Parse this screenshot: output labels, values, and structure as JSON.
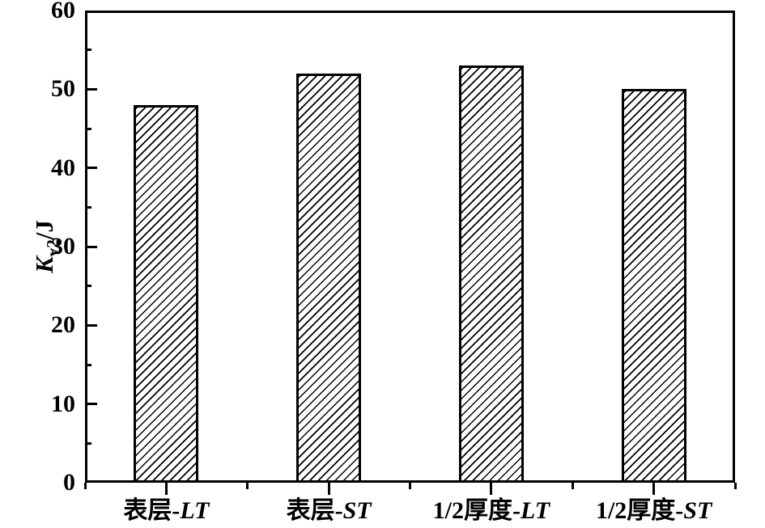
{
  "figure": {
    "background": "#ffffff",
    "axis_color": "#000000",
    "bar_fill": "#ffffff",
    "hatch_color": "#000000"
  },
  "chart_data": {
    "type": "bar",
    "title": "",
    "xlabel": "",
    "ylabel": "Kv2/J",
    "ylabel_parts": {
      "symbol": "K",
      "subscript": "v2",
      "unit": "/J"
    },
    "categories": [
      "表层-LT",
      "表层-ST",
      "1/2厚度-LT",
      "1/2厚度-ST"
    ],
    "values": [
      48,
      52,
      53,
      50
    ],
    "ylim": [
      0,
      60
    ],
    "ytick_labels": [
      "0",
      "10",
      "20",
      "30",
      "40",
      "50",
      "60"
    ],
    "ytick_major_step": 10,
    "ytick_minor_step": 5,
    "bar_style": {
      "fill": "#ffffff",
      "hatch": "diagonal-forward",
      "edge_color": "#000000"
    },
    "legend_position": "none",
    "grid": false
  }
}
